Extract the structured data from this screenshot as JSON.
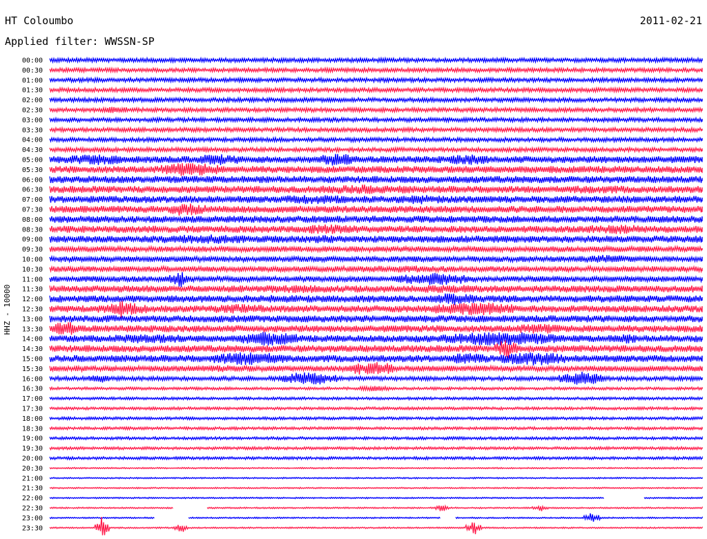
{
  "header": {
    "station": "HT Coloumbo",
    "date": "2011-02-21",
    "filter": "Applied filter: WWSSN-SP"
  },
  "chart_data": {
    "type": "line",
    "title": "",
    "ylabel": "HHZ - 10000",
    "colors": [
      "#0000ff",
      "#ff1a4a"
    ],
    "row_labels": [
      "00:00",
      "00:30",
      "01:00",
      "01:30",
      "02:00",
      "02:30",
      "03:00",
      "03:30",
      "04:00",
      "04:30",
      "05:00",
      "05:30",
      "06:00",
      "06:30",
      "07:00",
      "07:30",
      "08:00",
      "08:30",
      "09:00",
      "09:30",
      "10:00",
      "10:30",
      "11:00",
      "11:30",
      "12:00",
      "12:30",
      "13:00",
      "13:30",
      "14:00",
      "14:30",
      "15:00",
      "15:30",
      "16:00",
      "16:30",
      "17:00",
      "17:30",
      "18:00",
      "18:30",
      "19:00",
      "19:30",
      "20:00",
      "20:30",
      "21:00",
      "21:30",
      "22:00",
      "22:30",
      "23:00",
      "23:30"
    ],
    "noise_amplitude": [
      3,
      3,
      3,
      3,
      3,
      3,
      3,
      3,
      3,
      3,
      5,
      5,
      5,
      5,
      5,
      5,
      5,
      5,
      5,
      4,
      4,
      4,
      4,
      5,
      5,
      5,
      5,
      5,
      5,
      5,
      5,
      4,
      3,
      2,
      2,
      2,
      2,
      2,
      2,
      2,
      2,
      1,
      1,
      1,
      1,
      1,
      1,
      1
    ],
    "bursts": [
      {
        "row": 5,
        "start": 0.08,
        "end": 0.12,
        "amp": 5
      },
      {
        "row": 10,
        "start": 0.03,
        "end": 0.11,
        "amp": 8
      },
      {
        "row": 10,
        "start": 0.22,
        "end": 0.29,
        "amp": 8
      },
      {
        "row": 10,
        "start": 0.41,
        "end": 0.47,
        "amp": 9
      },
      {
        "row": 10,
        "start": 0.61,
        "end": 0.67,
        "amp": 8
      },
      {
        "row": 11,
        "start": 0.17,
        "end": 0.26,
        "amp": 10
      },
      {
        "row": 11,
        "start": 0.73,
        "end": 0.83,
        "amp": 4
      },
      {
        "row": 13,
        "start": 0.11,
        "end": 0.25,
        "amp": 4
      },
      {
        "row": 13,
        "start": 0.41,
        "end": 0.55,
        "amp": 7
      },
      {
        "row": 13,
        "start": 0.79,
        "end": 0.88,
        "amp": 6
      },
      {
        "row": 14,
        "start": 0.01,
        "end": 0.05,
        "amp": 4
      },
      {
        "row": 14,
        "start": 0.36,
        "end": 0.46,
        "amp": 7
      },
      {
        "row": 14,
        "start": 0.53,
        "end": 0.6,
        "amp": 7
      },
      {
        "row": 14,
        "start": 0.64,
        "end": 0.71,
        "amp": 5
      },
      {
        "row": 15,
        "start": 0.18,
        "end": 0.24,
        "amp": 9
      },
      {
        "row": 16,
        "start": 0.13,
        "end": 0.18,
        "amp": 5
      },
      {
        "row": 16,
        "start": 0.83,
        "end": 0.87,
        "amp": 5
      },
      {
        "row": 17,
        "start": 0.25,
        "end": 0.36,
        "amp": 5
      },
      {
        "row": 17,
        "start": 0.38,
        "end": 0.47,
        "amp": 7
      },
      {
        "row": 17,
        "start": 0.82,
        "end": 0.91,
        "amp": 7
      },
      {
        "row": 18,
        "start": 0.17,
        "end": 0.3,
        "amp": 7
      },
      {
        "row": 18,
        "start": 0.38,
        "end": 0.46,
        "amp": 6
      },
      {
        "row": 18,
        "start": 0.58,
        "end": 0.62,
        "amp": 5
      },
      {
        "row": 18,
        "start": 0.76,
        "end": 0.79,
        "amp": 5
      },
      {
        "row": 19,
        "start": 0.69,
        "end": 0.77,
        "amp": 4
      },
      {
        "row": 20,
        "start": 0.81,
        "end": 0.89,
        "amp": 6
      },
      {
        "row": 20,
        "start": 0.91,
        "end": 0.95,
        "amp": 4
      },
      {
        "row": 21,
        "start": 0.47,
        "end": 0.62,
        "amp": 5
      },
      {
        "row": 21,
        "start": 0.73,
        "end": 0.8,
        "amp": 4
      },
      {
        "row": 22,
        "start": 0.18,
        "end": 0.21,
        "amp": 8
      },
      {
        "row": 22,
        "start": 0.53,
        "end": 0.65,
        "amp": 9
      },
      {
        "row": 22,
        "start": 0.85,
        "end": 0.92,
        "amp": 4
      },
      {
        "row": 23,
        "start": 0.33,
        "end": 0.42,
        "amp": 6
      },
      {
        "row": 23,
        "start": 0.57,
        "end": 0.65,
        "amp": 6
      },
      {
        "row": 24,
        "start": 0.3,
        "end": 0.38,
        "amp": 6
      },
      {
        "row": 24,
        "start": 0.59,
        "end": 0.65,
        "amp": 9
      },
      {
        "row": 25,
        "start": 0.07,
        "end": 0.15,
        "amp": 9
      },
      {
        "row": 25,
        "start": 0.24,
        "end": 0.33,
        "amp": 7
      },
      {
        "row": 25,
        "start": 0.59,
        "end": 0.71,
        "amp": 10
      },
      {
        "row": 26,
        "start": 0.24,
        "end": 0.27,
        "amp": 5
      },
      {
        "row": 26,
        "start": 0.46,
        "end": 0.56,
        "amp": 4
      },
      {
        "row": 27,
        "start": 0.0,
        "end": 0.05,
        "amp": 10
      },
      {
        "row": 27,
        "start": 0.71,
        "end": 0.79,
        "amp": 7
      },
      {
        "row": 28,
        "start": 0.1,
        "end": 0.2,
        "amp": 7
      },
      {
        "row": 28,
        "start": 0.29,
        "end": 0.38,
        "amp": 10
      },
      {
        "row": 28,
        "start": 0.6,
        "end": 0.78,
        "amp": 10
      },
      {
        "row": 28,
        "start": 0.86,
        "end": 0.9,
        "amp": 7
      },
      {
        "row": 29,
        "start": 0.68,
        "end": 0.72,
        "amp": 12
      },
      {
        "row": 29,
        "start": 0.95,
        "end": 1.0,
        "amp": 5
      },
      {
        "row": 30,
        "start": 0.25,
        "end": 0.36,
        "amp": 10
      },
      {
        "row": 30,
        "start": 0.61,
        "end": 0.67,
        "amp": 8
      },
      {
        "row": 30,
        "start": 0.69,
        "end": 0.79,
        "amp": 10
      },
      {
        "row": 31,
        "start": 0.23,
        "end": 0.31,
        "amp": 5
      },
      {
        "row": 31,
        "start": 0.47,
        "end": 0.53,
        "amp": 10
      },
      {
        "row": 32,
        "start": 0.06,
        "end": 0.09,
        "amp": 6
      },
      {
        "row": 32,
        "start": 0.35,
        "end": 0.44,
        "amp": 10
      },
      {
        "row": 32,
        "start": 0.78,
        "end": 0.85,
        "amp": 10
      },
      {
        "row": 33,
        "start": 0.47,
        "end": 0.52,
        "amp": 4
      }
    ],
    "spikes": [
      {
        "row": 10,
        "pos": 0.44,
        "amp": 14
      },
      {
        "row": 15,
        "pos": 0.2,
        "amp": 10
      },
      {
        "row": 22,
        "pos": 0.2,
        "amp": 12
      },
      {
        "row": 25,
        "pos": 0.11,
        "amp": 14
      },
      {
        "row": 27,
        "pos": 0.03,
        "amp": 12
      },
      {
        "row": 29,
        "pos": 0.7,
        "amp": 14
      },
      {
        "row": 31,
        "pos": 0.47,
        "amp": 12
      },
      {
        "row": 45,
        "pos": 0.6,
        "amp": 6
      },
      {
        "row": 45,
        "pos": 0.75,
        "amp": 5
      },
      {
        "row": 46,
        "pos": 0.83,
        "amp": 9
      },
      {
        "row": 47,
        "pos": 0.08,
        "amp": 16
      },
      {
        "row": 47,
        "pos": 0.2,
        "amp": 6
      },
      {
        "row": 47,
        "pos": 0.65,
        "amp": 10
      }
    ],
    "gaps": [
      {
        "row": 44,
        "start": 0.85,
        "end": 0.91
      },
      {
        "row": 45,
        "start": 0.19,
        "end": 0.24
      },
      {
        "row": 46,
        "start": 0.16,
        "end": 0.21
      },
      {
        "row": 46,
        "start": 0.6,
        "end": 0.62
      }
    ]
  }
}
